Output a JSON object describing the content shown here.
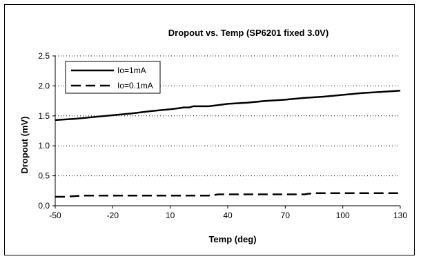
{
  "chart_data": {
    "type": "line",
    "title": "Dropout vs. Temp (SP6201 fixed 3.0V)",
    "xlabel": "Temp (deg)",
    "ylabel": "Dropout (mV)",
    "xlim": [
      -50,
      130
    ],
    "ylim": [
      0,
      2.5
    ],
    "x_ticks": [
      "-50",
      "-20",
      "10",
      "40",
      "70",
      "100",
      "130"
    ],
    "x_tick_values": [
      -50,
      -20,
      10,
      40,
      70,
      100,
      130
    ],
    "y_ticks": [
      "0.0",
      "0.5",
      "1.0",
      "1.5",
      "2.0",
      "2.5"
    ],
    "y_tick_values": [
      0,
      0.5,
      1.0,
      1.5,
      2.0,
      2.5
    ],
    "grid": "horizontal dotted",
    "legend_position": "top-left",
    "series": [
      {
        "name": "Io=1mA",
        "style": "solid",
        "color": "#000000",
        "x": [
          -50,
          -40,
          -30,
          -20,
          -10,
          0,
          10,
          15,
          17,
          20,
          22,
          30,
          35,
          40,
          50,
          60,
          70,
          80,
          90,
          100,
          110,
          120,
          130
        ],
        "y": [
          1.43,
          1.45,
          1.48,
          1.51,
          1.54,
          1.58,
          1.61,
          1.63,
          1.64,
          1.64,
          1.66,
          1.66,
          1.68,
          1.7,
          1.72,
          1.75,
          1.77,
          1.8,
          1.82,
          1.85,
          1.88,
          1.9,
          1.92
        ]
      },
      {
        "name": "Io=0.1mA",
        "style": "dashed",
        "color": "#000000",
        "x": [
          -50,
          -45,
          -40,
          -35,
          -30,
          -20,
          0,
          20,
          30,
          33,
          35,
          50,
          80,
          82,
          85,
          100,
          130
        ],
        "y": [
          0.15,
          0.15,
          0.16,
          0.17,
          0.17,
          0.17,
          0.17,
          0.17,
          0.17,
          0.18,
          0.19,
          0.19,
          0.19,
          0.2,
          0.21,
          0.21,
          0.21
        ]
      }
    ]
  }
}
